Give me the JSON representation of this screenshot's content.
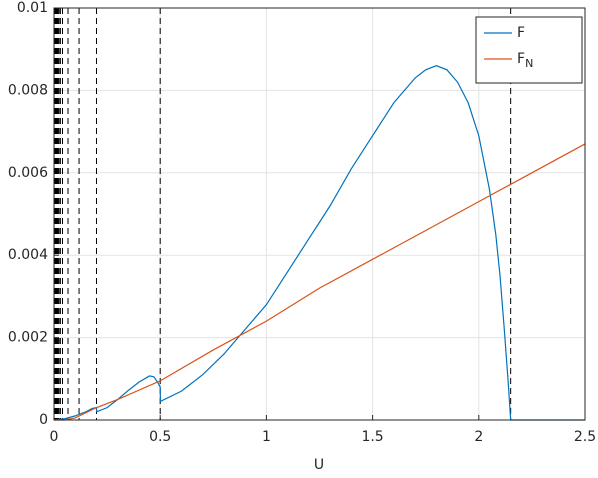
{
  "chart_data": {
    "type": "line",
    "xlabel": "U",
    "xlim": [
      0,
      2.5
    ],
    "xticks": [
      0,
      0.5,
      1,
      1.5,
      2,
      2.5
    ],
    "ylim": [
      0,
      0.01
    ],
    "yticks": [
      0,
      0.002,
      0.004,
      0.006,
      0.008,
      0.01
    ],
    "grid": true,
    "legend": "top-right",
    "vlines": [
      2.15,
      0.5,
      0.2,
      0.118,
      0.066,
      0.04,
      0.03,
      0.024,
      0.02,
      0.017,
      0.014,
      0.012,
      0.01,
      0.008,
      0.006,
      0.004,
      0.002
    ],
    "vline_color": "#000000",
    "series": [
      {
        "name": "F",
        "color": "#0072BD",
        "x": [
          0,
          0.05,
          0.1,
          0.15,
          0.18,
          0.2,
          0.201,
          0.25,
          0.3,
          0.35,
          0.4,
          0.45,
          0.47,
          0.49,
          0.5,
          0.501,
          0.6,
          0.7,
          0.8,
          0.9,
          1.0,
          1.1,
          1.2,
          1.3,
          1.4,
          1.5,
          1.6,
          1.7,
          1.75,
          1.8,
          1.85,
          1.9,
          1.95,
          2.0,
          2.05,
          2.08,
          2.1,
          2.12,
          2.14,
          2.15,
          2.2,
          2.5
        ],
        "values": [
          0,
          3e-05,
          0.0001,
          0.0002,
          0.00028,
          0.0003,
          0.0002,
          0.0003,
          0.0005,
          0.00072,
          0.00092,
          0.00107,
          0.00105,
          0.0009,
          0.0008,
          0.00045,
          0.0007,
          0.0011,
          0.0016,
          0.0022,
          0.0028,
          0.0036,
          0.0044,
          0.0052,
          0.0061,
          0.0069,
          0.0077,
          0.0083,
          0.0085,
          0.0086,
          0.0085,
          0.0082,
          0.0077,
          0.0069,
          0.0056,
          0.0045,
          0.0035,
          0.0022,
          0.0008,
          0,
          0,
          0
        ]
      },
      {
        "name": "F",
        "name_subscript": "N",
        "color": "#D95319",
        "x": [
          0,
          0.05,
          0.1,
          0.2,
          0.3,
          0.5,
          0.75,
          1.0,
          1.25,
          1.5,
          1.75,
          2.0,
          2.25,
          2.5
        ],
        "values": [
          0,
          0,
          5e-05,
          0.0003,
          0.0005,
          0.00095,
          0.0017,
          0.0024,
          0.0032,
          0.0039,
          0.0046,
          0.0053,
          0.006,
          0.0067
        ]
      }
    ]
  }
}
